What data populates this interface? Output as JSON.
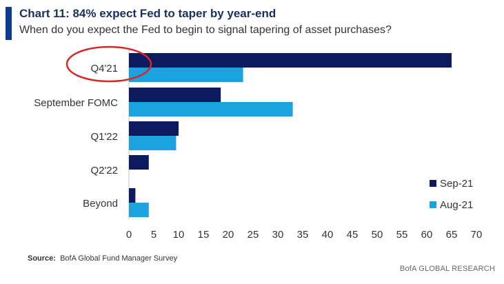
{
  "header": {
    "title": "Chart 11: 84% expect Fed to taper by year-end",
    "subtitle": "When do you expect the Fed to begin to signal tapering of asset purchases?"
  },
  "source": {
    "label": "Source:",
    "text": "BofA Global Fund Manager Survey"
  },
  "footer": {
    "text": "BofA GLOBAL RESEARCH"
  },
  "colors": {
    "sep21": "#0d1b5e",
    "aug21": "#1ba3e0",
    "accent": "#0a3d91",
    "highlight_circle": "#d62728"
  },
  "chart_data": {
    "type": "bar",
    "orientation": "horizontal",
    "categories": [
      "Q4'21",
      "September FOMC",
      "Q1'22",
      "Q2'22",
      "Beyond"
    ],
    "series": [
      {
        "name": "Sep-21",
        "values": [
          65,
          18.5,
          10,
          4,
          1.3
        ]
      },
      {
        "name": "Aug-21",
        "values": [
          23,
          33,
          9.5,
          0,
          4
        ]
      }
    ],
    "xticks": [
      0,
      5,
      10,
      15,
      20,
      25,
      30,
      35,
      40,
      45,
      50,
      55,
      60,
      65,
      70
    ],
    "xlim": [
      0,
      70
    ],
    "grid": false,
    "legend_position": "bottom-right",
    "highlight": "Q4'21"
  }
}
